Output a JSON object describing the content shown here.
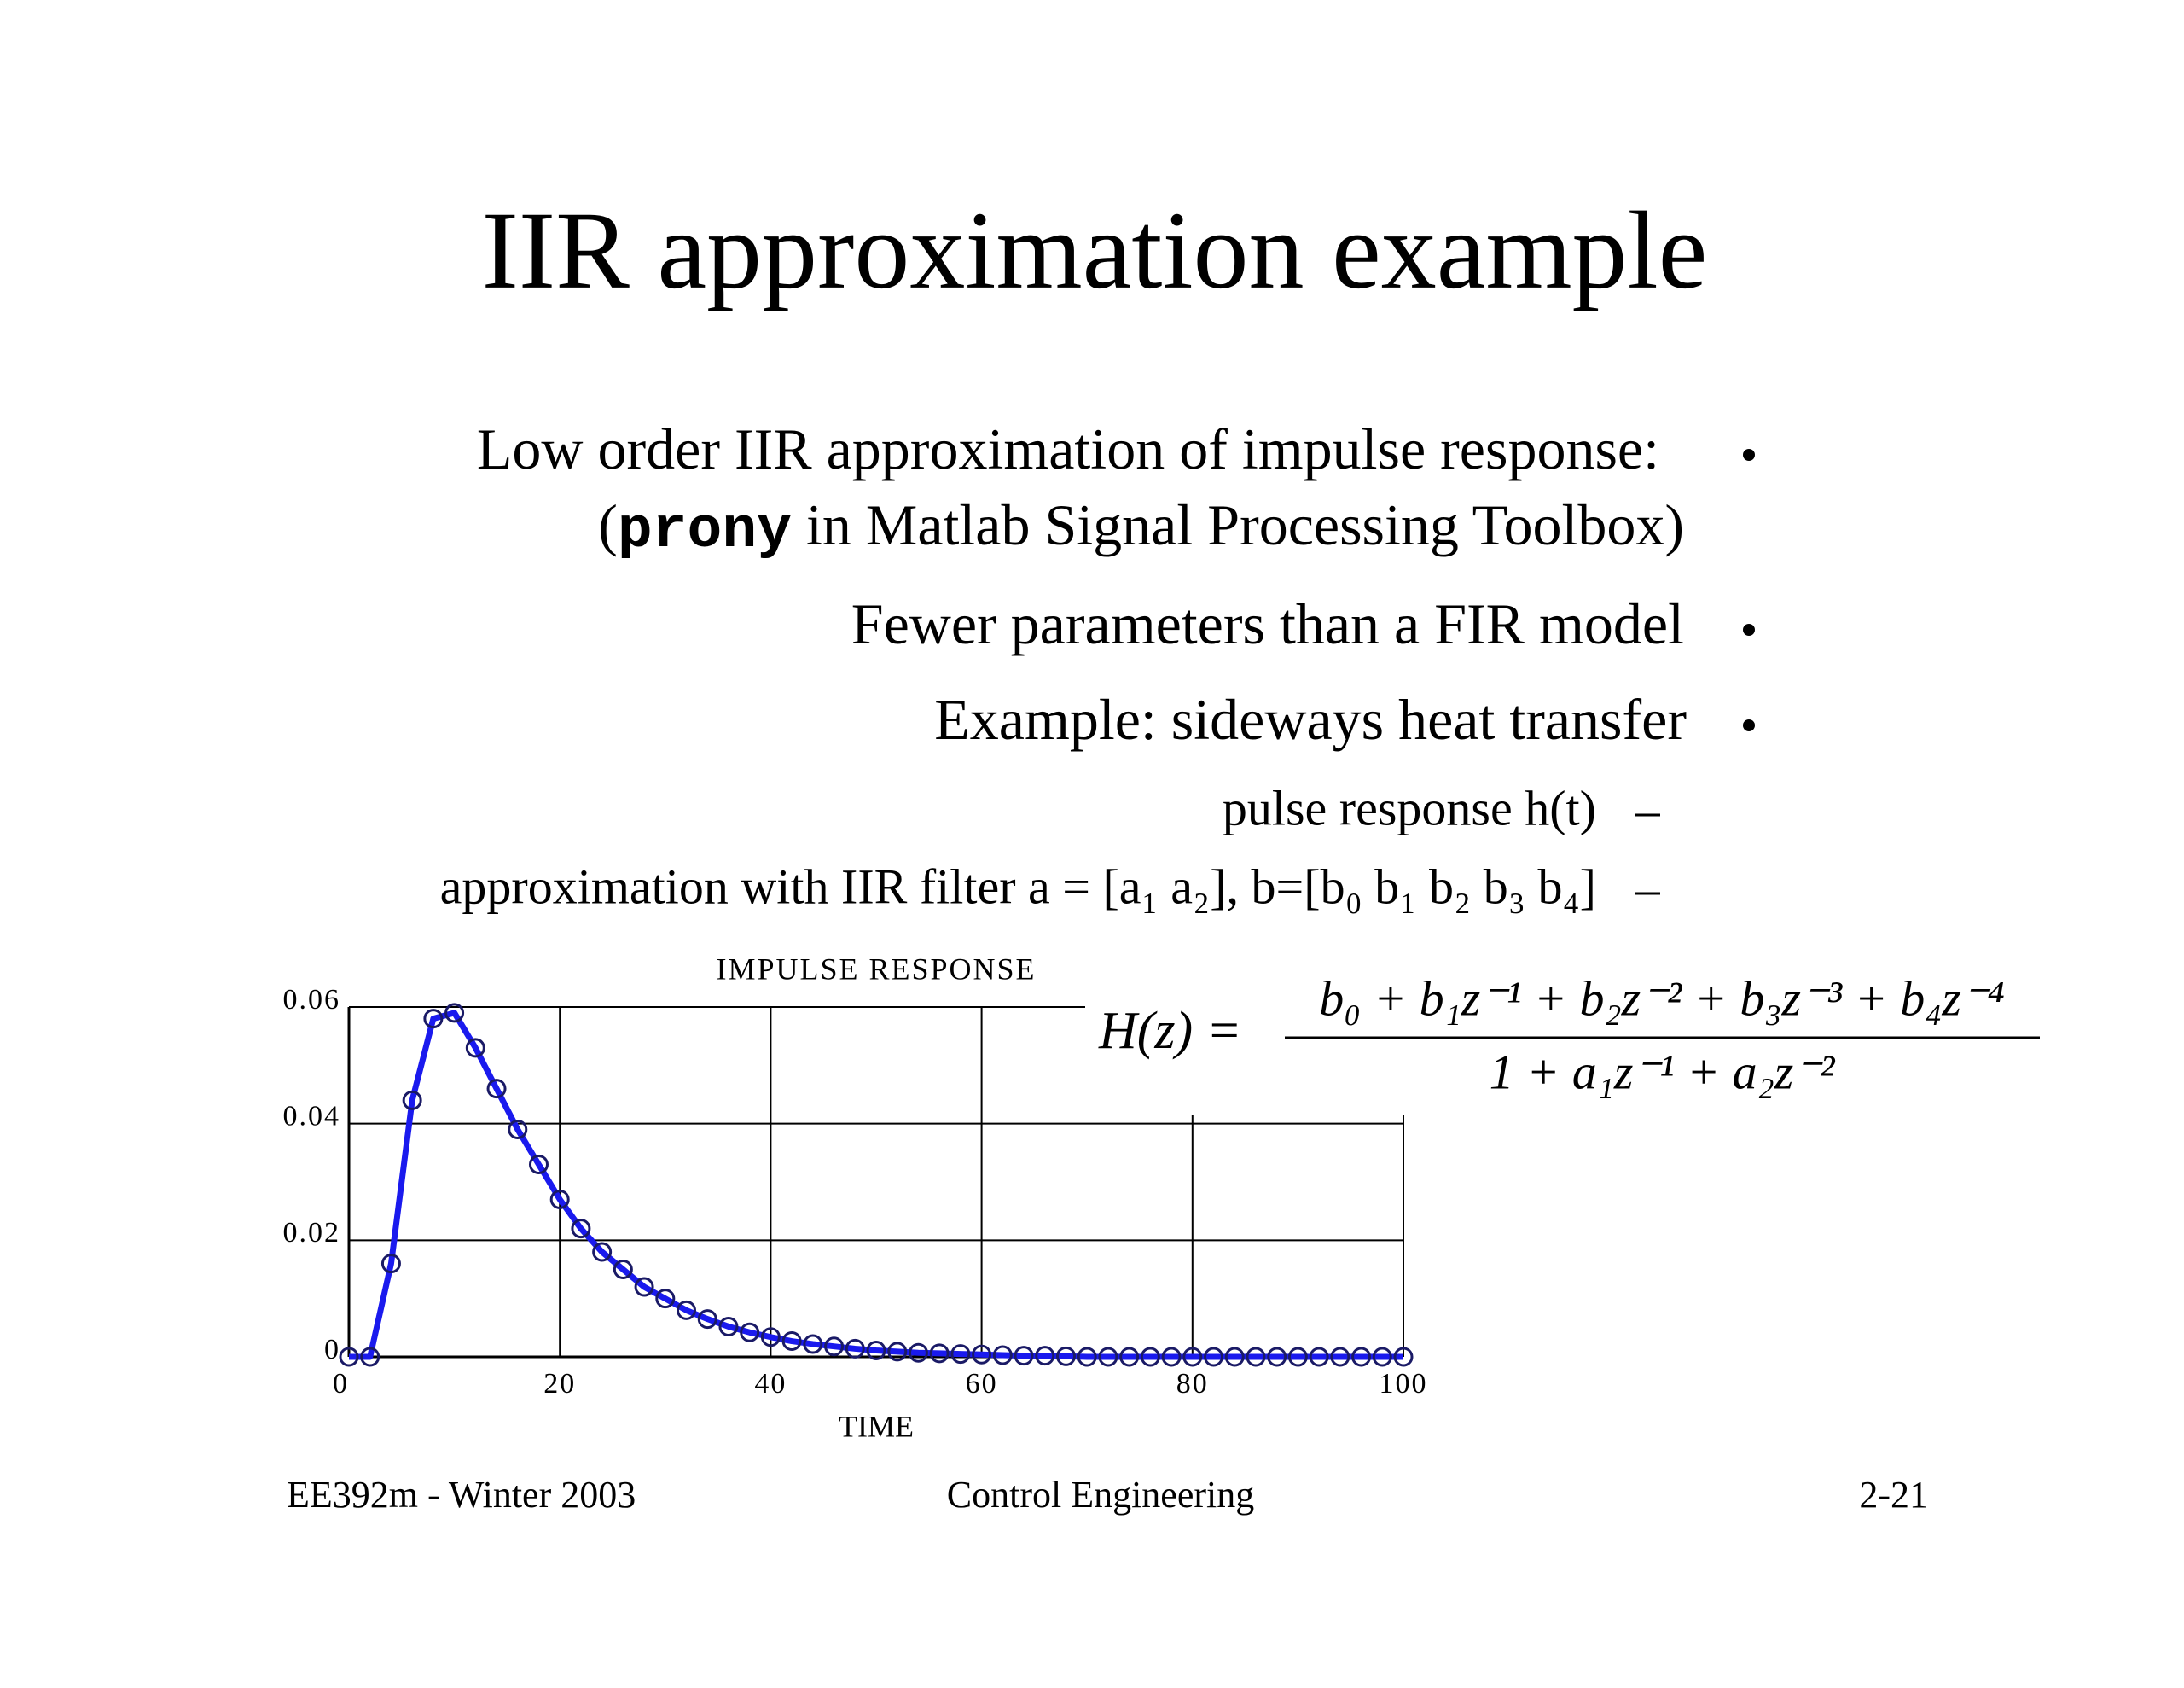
{
  "slide": {
    "title": "IIR approximation example",
    "bullets": [
      {
        "parts": [
          "Low order IIR approximation of impulse response:"
        ]
      },
      {
        "parts": [
          "(",
          "prony",
          " in Matlab Signal Processing Toolbox)"
        ]
      },
      {
        "parts": [
          "Fewer parameters than a FIR model"
        ]
      },
      {
        "parts": [
          "Example: sideways heat transfer"
        ]
      }
    ],
    "subbullets": [
      "pulse response h(t)",
      "approximation with IIR filter a = [a₁ a₂], b=[b₀ b₁ b₂ b₃ b₄]"
    ],
    "formula": {
      "lhs": "H(z) =",
      "numerator": "b₀ + b₁z⁻¹ + b₂z⁻² + b₃z⁻³ + b₄z⁻⁴",
      "denominator": "1 + a₁z⁻¹ + a₂z⁻²"
    },
    "footer": {
      "left": "EE392m - Winter 2003",
      "center": "Control Engineering",
      "right": "2-21"
    }
  },
  "chart_data": {
    "type": "line",
    "title": "IMPULSE RESPONSE",
    "xlabel": "TIME",
    "x": [
      0,
      2,
      4,
      6,
      8,
      10,
      12,
      14,
      16,
      18,
      20,
      22,
      24,
      26,
      28,
      30,
      32,
      34,
      36,
      38,
      40,
      42,
      44,
      46,
      48,
      50,
      52,
      54,
      56,
      58,
      60,
      62,
      64,
      66,
      68,
      70,
      72,
      74,
      76,
      78,
      80,
      82,
      84,
      86,
      88,
      90,
      92,
      94,
      96,
      98,
      100
    ],
    "series": [
      {
        "color": "#1a1aee",
        "marker_color": "#1a1a66",
        "values": [
          0,
          0,
          0.016,
          0.044,
          0.058,
          0.059,
          0.053,
          0.046,
          0.039,
          0.033,
          0.027,
          0.022,
          0.018,
          0.015,
          0.012,
          0.01,
          0.008,
          0.0065,
          0.0052,
          0.0042,
          0.0034,
          0.0027,
          0.0022,
          0.0018,
          0.0014,
          0.0011,
          0.0009,
          0.0007,
          0.0006,
          0.0005,
          0.0004,
          0.0003,
          0.0002,
          0.0002,
          0.0001,
          0,
          0,
          0,
          0,
          0,
          0,
          0,
          0,
          0,
          0,
          0,
          0,
          0,
          0,
          0,
          0
        ]
      }
    ],
    "xlim": [
      0,
      100
    ],
    "xticks": [
      0,
      20,
      40,
      60,
      80,
      100
    ],
    "ylim": [
      0,
      0.06
    ],
    "yticks": [
      0,
      0.02,
      0.04,
      0.06
    ],
    "grid": true
  }
}
